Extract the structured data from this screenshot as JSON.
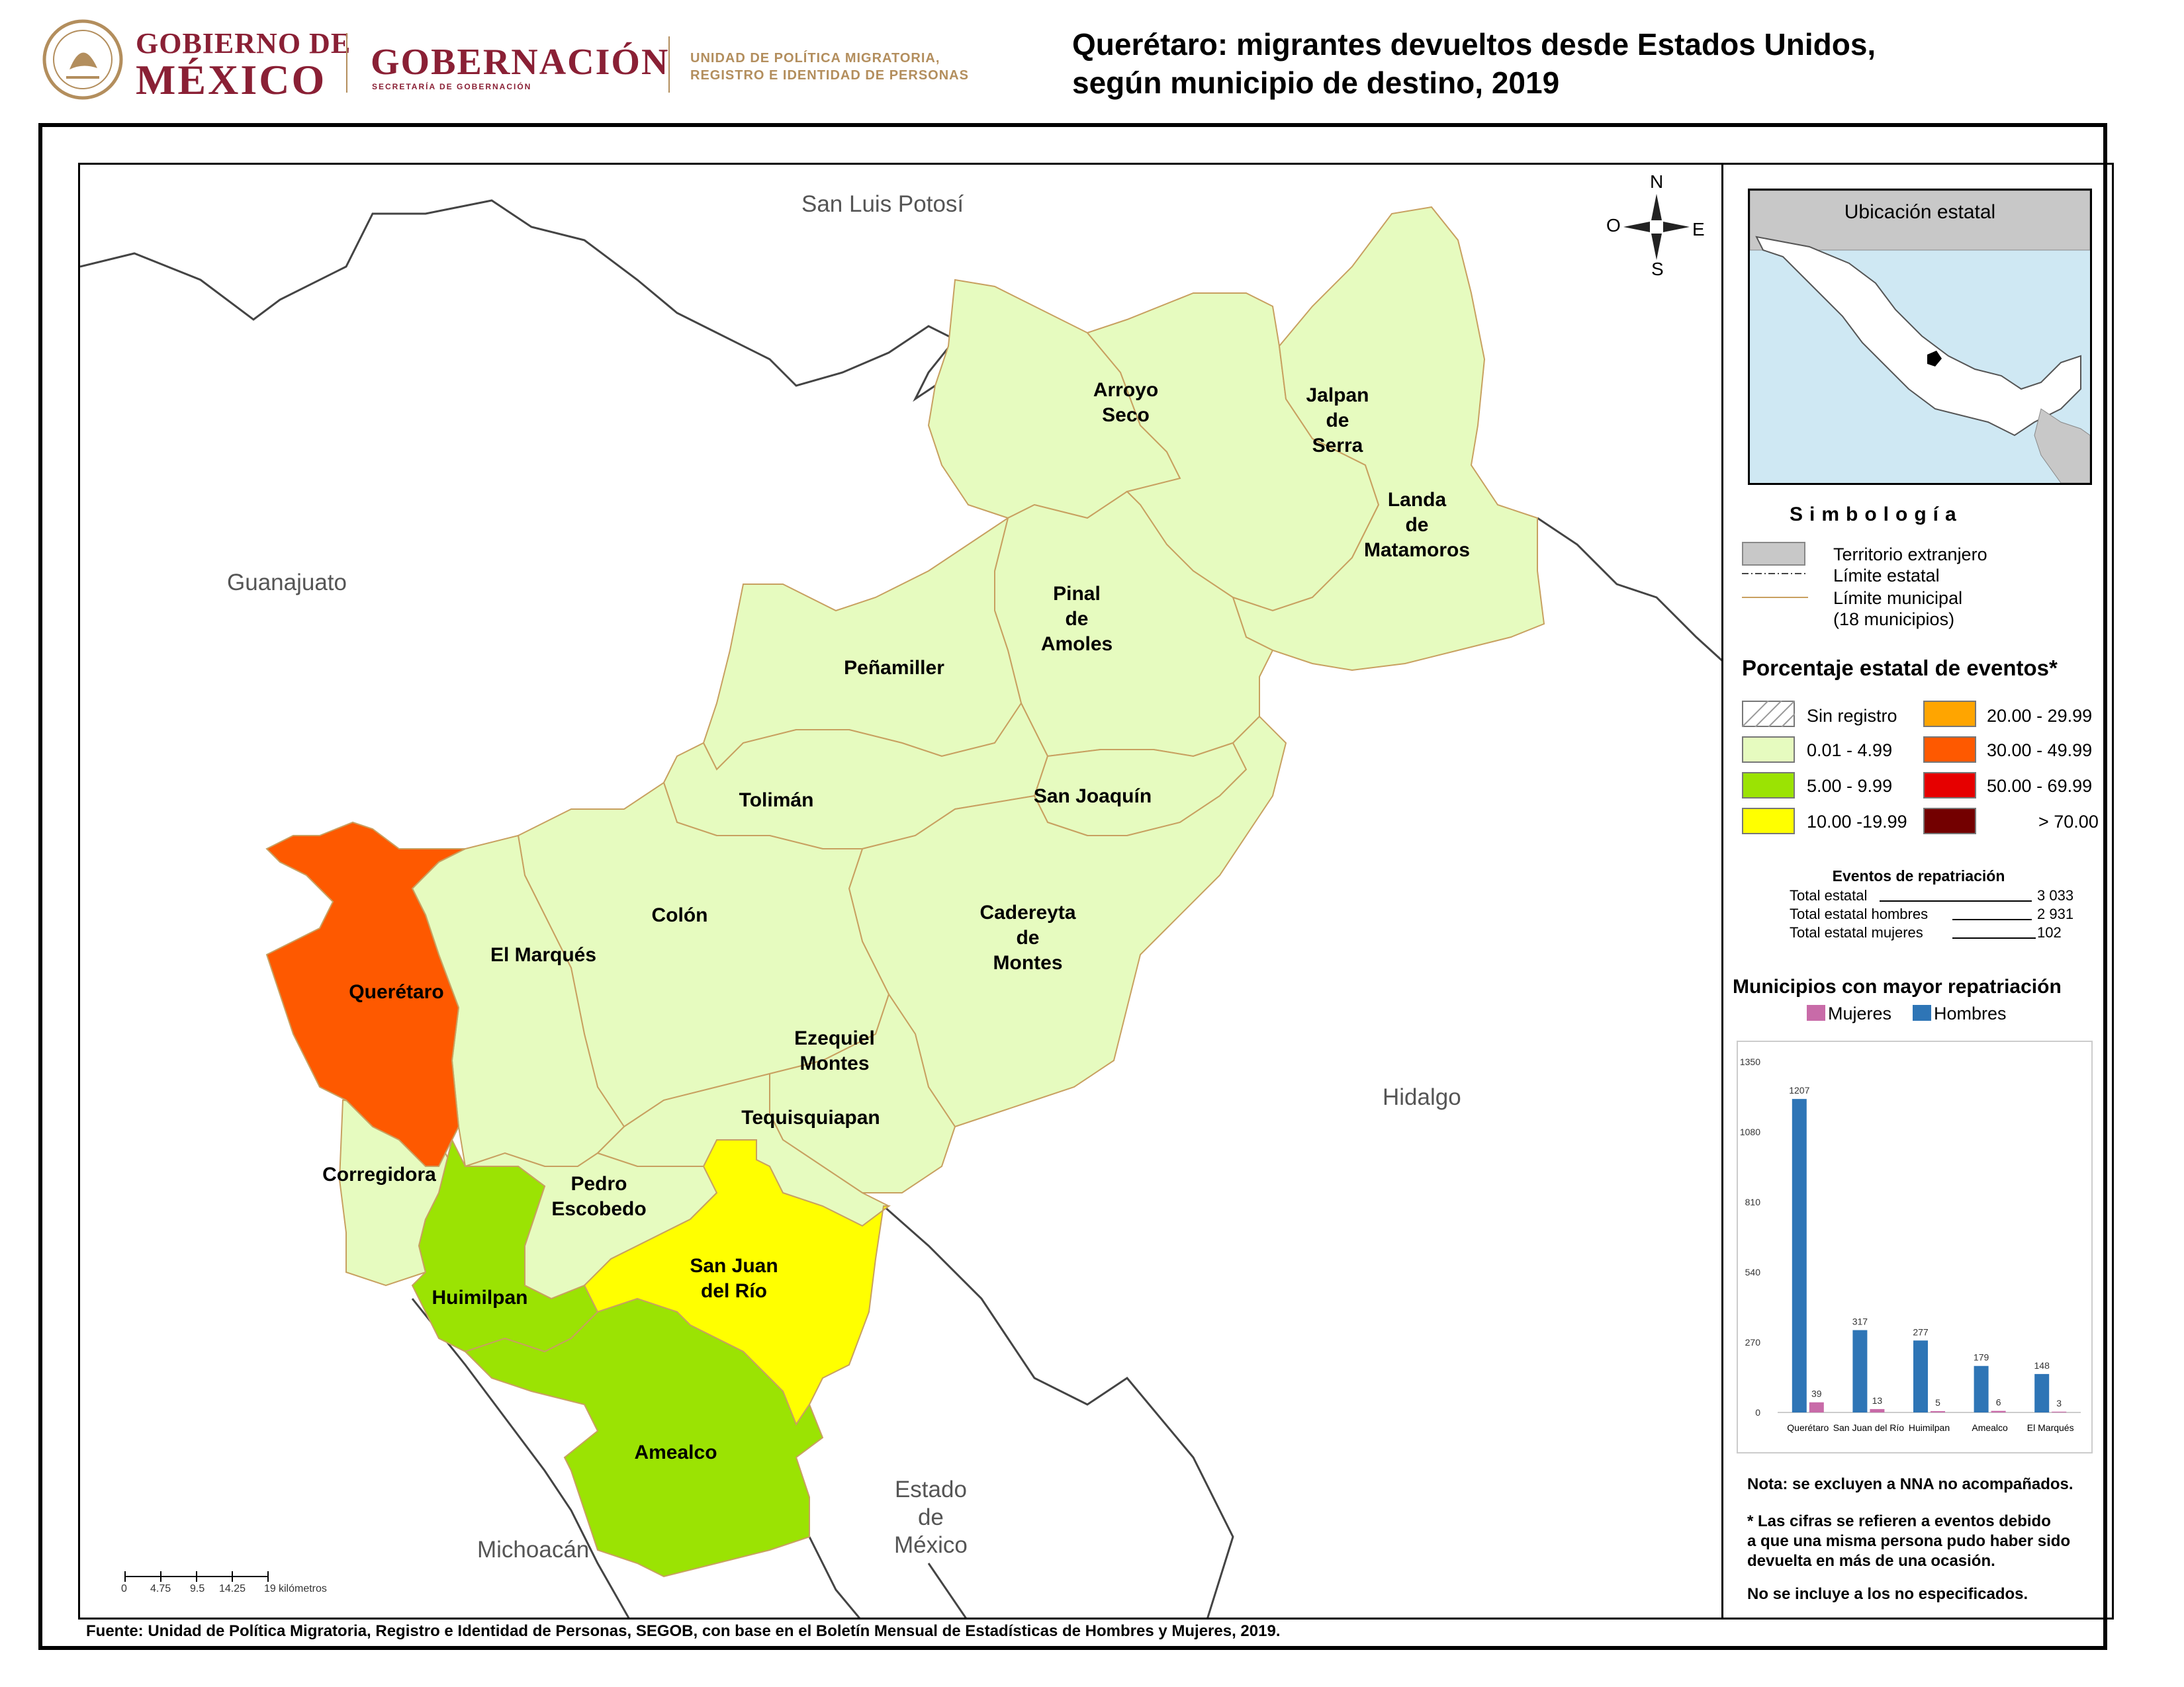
{
  "header": {
    "logo_gobierno_line1": "GOBIERNO DE",
    "logo_gobierno_line2": "MÉXICO",
    "logo_gobernacion": "GOBERNACIÓN",
    "logo_gobernacion_sub": "SECRETARÍA DE GOBERNACIÓN",
    "logo_upm_line1": "UNIDAD DE POLÍTICA MIGRATORIA,",
    "logo_upm_line2": "REGISTRO E IDENTIDAD DE PERSONAS",
    "title_line1": "Querétaro: migrantes devueltos desde Estados Unidos,",
    "title_line2": "según municipio de destino, 2019",
    "brand_color": "#8a2035",
    "gold_color": "#b38e5d"
  },
  "map": {
    "neighbor_states": {
      "san_luis_potosi": "San Luis Potosí",
      "guanajuato": "Guanajuato",
      "hidalgo": "Hidalgo",
      "michoacan": "Michoacán",
      "estado_de_mexico": "Estado\nde\nMéxico"
    },
    "compass": {
      "n": "N",
      "s": "S",
      "e": "E",
      "w": "O"
    },
    "scale": {
      "ticks": [
        "0",
        "4.75",
        "9.5",
        "14.25",
        "19"
      ],
      "unit": "kilómetros"
    },
    "municipalities": [
      {
        "name": "Arroyo\nSeco",
        "class": "0.01 - 4.99"
      },
      {
        "name": "Jalpan\nde\nSerra",
        "class": "0.01 - 4.99"
      },
      {
        "name": "Landa\nde\nMatamoros",
        "class": "0.01 - 4.99"
      },
      {
        "name": "Pinal\nde\nAmoles",
        "class": "0.01 - 4.99"
      },
      {
        "name": "Peñamiller",
        "class": "0.01 - 4.99"
      },
      {
        "name": "Tolimán",
        "class": "0.01 - 4.99"
      },
      {
        "name": "San Joaquín",
        "class": "0.01 - 4.99"
      },
      {
        "name": "Colón",
        "class": "0.01 - 4.99"
      },
      {
        "name": "Cadereyta\nde\nMontes",
        "class": "0.01 - 4.99"
      },
      {
        "name": "El Marqués",
        "class": "0.01 - 4.99"
      },
      {
        "name": "Querétaro",
        "class": "30.00 - 49.99"
      },
      {
        "name": "Ezequiel\nMontes",
        "class": "0.01 - 4.99"
      },
      {
        "name": "Tequisquiapan",
        "class": "0.01 - 4.99"
      },
      {
        "name": "Corregidora",
        "class": "0.01 - 4.99"
      },
      {
        "name": "Pedro\nEscobedo",
        "class": "0.01 - 4.99"
      },
      {
        "name": "San Juan\ndel Río",
        "class": "10.00 -19.99"
      },
      {
        "name": "Huimilpan",
        "class": "5.00 - 9.99"
      },
      {
        "name": "Amealco",
        "class": "5.00 - 9.99"
      }
    ],
    "colors": {
      "light_green": "#e6fbbf",
      "green": "#9be303",
      "yellow": "#ffff00",
      "orange_red": "#fe5900",
      "border": "#c8a060",
      "outside": "#ffffff"
    }
  },
  "legend": {
    "inset_title": "Ubicación estatal",
    "simbologia_title": "Simbología",
    "simbologia_items": {
      "foreign": "Territorio extranjero",
      "state_limit": "Límite estatal",
      "municipal_limit": "Límite municipal",
      "municipal_count": "(18 municipios)"
    },
    "pct_title": "Porcentaje estatal de eventos*",
    "classes": [
      {
        "label": "Sin registro",
        "color": "#ffffff"
      },
      {
        "label": "0.01  - 4.99",
        "color": "#e6fbbf"
      },
      {
        "label": "5.00  - 9.99",
        "color": "#9be303"
      },
      {
        "label": "10.00 -19.99",
        "color": "#ffff00"
      },
      {
        "label": "20.00 - 29.99",
        "color": "#ffa500"
      },
      {
        "label": "30.00 - 49.99",
        "color": "#fe5900"
      },
      {
        "label": "50.00 - 69.99",
        "color": "#e60000"
      },
      {
        "label": "> 70.00",
        "color": "#730000"
      }
    ],
    "events": {
      "title": "Eventos de repatriación",
      "total_label": "Total estatal",
      "total_value": "3 033",
      "men_label": "Total estatal hombres",
      "men_value": "2 931",
      "women_label": "Total estatal mujeres",
      "women_value": "102"
    },
    "chart_title": "Municipios con mayor repatriación",
    "notes": {
      "nna": "Nota: se excluyen a NNA no acompañados.",
      "events": "* Las cifras se refieren a eventos debido\na que una misma persona pudo haber sido\ndevuelta en más de una ocasión.",
      "unspecified": "No se incluye a los no especificados."
    }
  },
  "source": "Fuente: Unidad de Política Migratoria, Registro e Identidad de Personas, SEGOB, con base en el Boletín Mensual de Estadísticas de Hombres y Mujeres, 2019.",
  "chart_data": {
    "type": "bar",
    "title": "Municipios con mayor repatriación",
    "categories": [
      "Querétaro",
      "San Juan del Río",
      "Huimilpan",
      "Amealco",
      "El Marqués"
    ],
    "series": [
      {
        "name": "Hombres",
        "values": [
          1207,
          317,
          277,
          179,
          148
        ],
        "color": "#2e75b6"
      },
      {
        "name": "Mujeres",
        "values": [
          39,
          13,
          5,
          6,
          3
        ],
        "color": "#c86ba8"
      }
    ],
    "yticks": [
      0,
      270,
      540,
      810,
      1080,
      1350
    ],
    "ylim": [
      0,
      1350
    ],
    "legend_position": "top"
  }
}
